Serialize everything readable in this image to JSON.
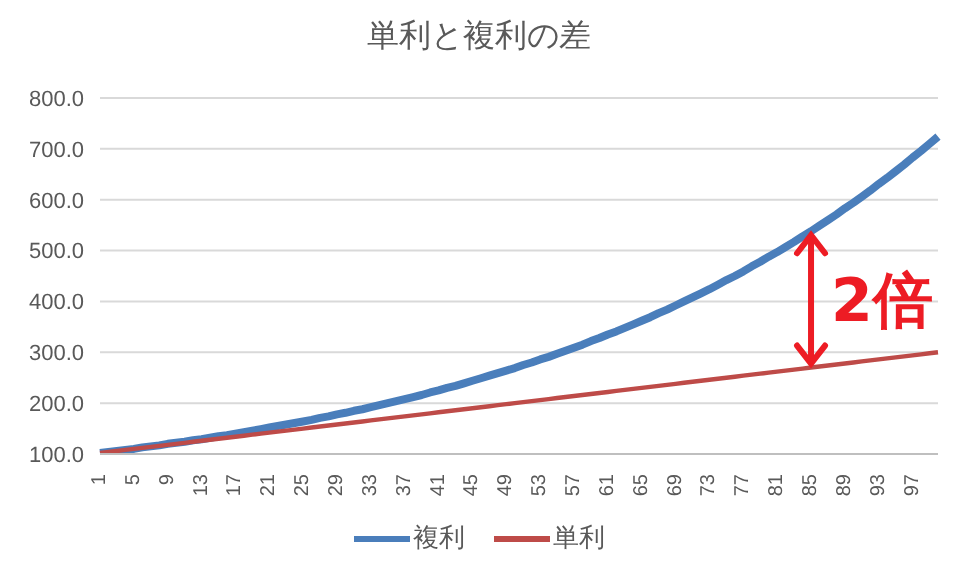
{
  "chart_data": {
    "type": "line",
    "title": "単利と複利の差",
    "categories": [
      "1",
      null,
      null,
      null,
      "5",
      null,
      null,
      null,
      "9",
      null,
      null,
      null,
      "13",
      null,
      null,
      null,
      "17",
      null,
      null,
      null,
      "21",
      null,
      null,
      null,
      "25",
      null,
      null,
      null,
      "29",
      null,
      null,
      null,
      "33",
      null,
      null,
      null,
      "37",
      null,
      null,
      null,
      "41",
      null,
      null,
      null,
      "45",
      null,
      null,
      null,
      "49",
      null,
      null,
      null,
      "53",
      null,
      null,
      null,
      "57",
      null,
      null,
      null,
      "61",
      null,
      null,
      null,
      "65",
      null,
      null,
      null,
      "69",
      null,
      null,
      null,
      "73",
      null,
      null,
      null,
      "77",
      null,
      null,
      null,
      "81",
      null,
      null,
      null,
      "85",
      null,
      null,
      null,
      "89",
      null,
      null,
      null,
      "93",
      null,
      null,
      null,
      "97",
      null,
      null,
      null
    ],
    "series": [
      {
        "name": "複利",
        "color": "#4a7ebb",
        "values": [
          102,
          104,
          106,
          108,
          110,
          113,
          115,
          117,
          120,
          122,
          124,
          127,
          129,
          132,
          135,
          137,
          140,
          143,
          146,
          149,
          152,
          155,
          158,
          161,
          164,
          167,
          171,
          174,
          178,
          181,
          185,
          188,
          192,
          196,
          200,
          204,
          208,
          212,
          216,
          221,
          225,
          230,
          234,
          239,
          244,
          249,
          254,
          259,
          264,
          269,
          275,
          280,
          286,
          291,
          297,
          303,
          309,
          315,
          322,
          328,
          335,
          341,
          348,
          355,
          362,
          369,
          377,
          384,
          392,
          400,
          408,
          416,
          424,
          433,
          442,
          450,
          459,
          469,
          478,
          488,
          497,
          507,
          517,
          528,
          538,
          549,
          560,
          571,
          583,
          594,
          606,
          618,
          631,
          643,
          656,
          669,
          683,
          696,
          710,
          724
        ]
      },
      {
        "name": "単利",
        "color": "#be4b48",
        "values": [
          102,
          104,
          106,
          108,
          110,
          112,
          114,
          116,
          118,
          120,
          122,
          124,
          126,
          128,
          130,
          132,
          134,
          136,
          138,
          140,
          142,
          144,
          146,
          148,
          150,
          152,
          154,
          156,
          158,
          160,
          162,
          164,
          166,
          168,
          170,
          172,
          174,
          176,
          178,
          180,
          182,
          184,
          186,
          188,
          190,
          192,
          194,
          196,
          198,
          200,
          202,
          204,
          206,
          208,
          210,
          212,
          214,
          216,
          218,
          220,
          222,
          224,
          226,
          228,
          230,
          232,
          234,
          236,
          238,
          240,
          242,
          244,
          246,
          248,
          250,
          252,
          254,
          256,
          258,
          260,
          262,
          264,
          266,
          268,
          270,
          272,
          274,
          276,
          278,
          280,
          282,
          284,
          286,
          288,
          290,
          292,
          294,
          296,
          298,
          300
        ]
      }
    ],
    "ylim": [
      100,
      800
    ],
    "yticks": [
      {
        "value": 100,
        "label": "100.0"
      },
      {
        "value": 200,
        "label": "200.0"
      },
      {
        "value": 300,
        "label": "300.0"
      },
      {
        "value": 400,
        "label": "400.0"
      },
      {
        "value": 500,
        "label": "500.0"
      },
      {
        "value": 600,
        "label": "600.0"
      },
      {
        "value": 700,
        "label": "700.0"
      },
      {
        "value": 800,
        "label": "800.0"
      }
    ],
    "grid": "y",
    "legend": "bottom",
    "marker": "none",
    "annotations": [
      {
        "text": "2倍",
        "x": "85",
        "y": 538
      }
    ]
  }
}
